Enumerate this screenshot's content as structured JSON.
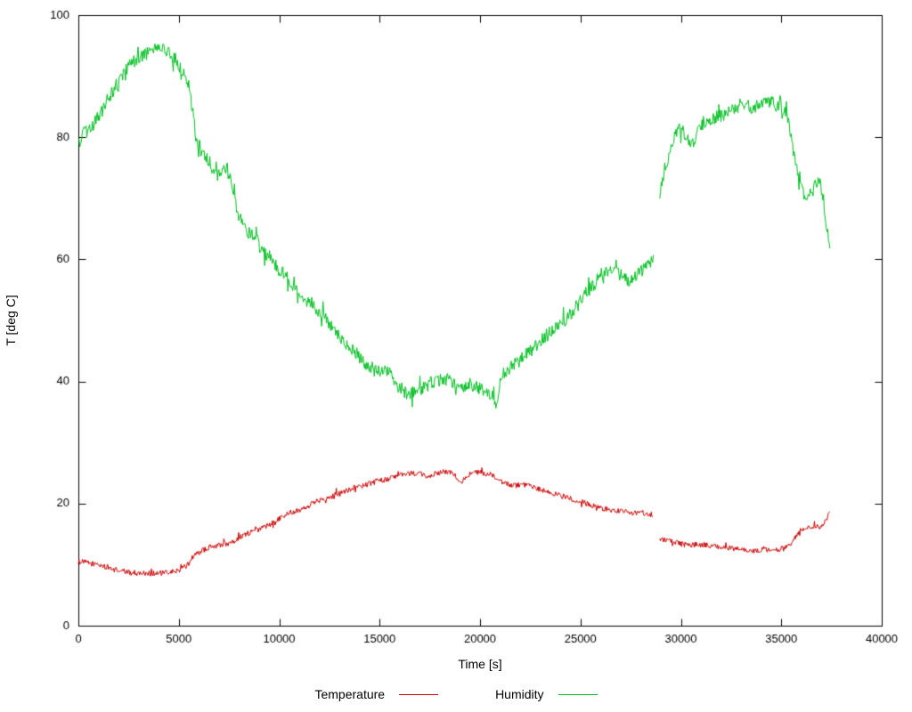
{
  "chart_data": {
    "type": "line",
    "title": "",
    "xlabel": "Time [s]",
    "ylabel": "T [deg C]",
    "xlim": [
      0,
      40000
    ],
    "ylim": [
      0,
      100
    ],
    "xticks": [
      0,
      5000,
      10000,
      15000,
      20000,
      25000,
      30000,
      35000,
      40000
    ],
    "yticks": [
      0,
      20,
      40,
      60,
      80,
      100
    ],
    "grid": false,
    "legend_position": "bottom-center",
    "axis_color": "#000000",
    "background_color": "#ffffff",
    "series": [
      {
        "name": "Temperature",
        "color": "#cc0000",
        "noise": 0.45,
        "segments": [
          [
            [
              0,
              10.5
            ],
            [
              300,
              10.4
            ],
            [
              600,
              10.2
            ],
            [
              1000,
              10.0
            ],
            [
              1400,
              9.6
            ],
            [
              1800,
              9.2
            ],
            [
              2200,
              8.9
            ],
            [
              2600,
              8.7
            ],
            [
              3000,
              8.6
            ],
            [
              3600,
              8.6
            ],
            [
              4200,
              8.6
            ],
            [
              4700,
              8.8
            ],
            [
              5100,
              9.2
            ],
            [
              5400,
              9.8
            ],
            [
              5700,
              11.3
            ],
            [
              6000,
              12.0
            ],
            [
              6300,
              12.5
            ],
            [
              6600,
              12.9
            ],
            [
              7000,
              13.2
            ],
            [
              7400,
              13.4
            ],
            [
              7800,
              14.0
            ],
            [
              8200,
              14.8
            ],
            [
              8600,
              15.3
            ],
            [
              9000,
              15.8
            ],
            [
              9400,
              16.3
            ],
            [
              9800,
              17.2
            ],
            [
              10200,
              18.0
            ],
            [
              10600,
              18.6
            ],
            [
              11000,
              19.0
            ],
            [
              11400,
              19.6
            ],
            [
              11800,
              20.3
            ],
            [
              12200,
              20.8
            ],
            [
              12600,
              21.2
            ],
            [
              13000,
              21.8
            ],
            [
              13400,
              22.2
            ],
            [
              13800,
              22.7
            ],
            [
              14200,
              23.0
            ],
            [
              14600,
              23.4
            ],
            [
              15000,
              23.8
            ],
            [
              15400,
              24.0
            ],
            [
              15800,
              24.4
            ],
            [
              16200,
              24.8
            ],
            [
              16600,
              25.0
            ],
            [
              17000,
              24.8
            ],
            [
              17400,
              24.5
            ],
            [
              17800,
              24.9
            ],
            [
              18200,
              25.1
            ],
            [
              18600,
              25.2
            ],
            [
              18900,
              24.0
            ],
            [
              19100,
              23.6
            ],
            [
              19300,
              24.6
            ],
            [
              19700,
              25.1
            ],
            [
              20100,
              25.0
            ],
            [
              20500,
              24.8
            ],
            [
              20900,
              23.8
            ],
            [
              21300,
              23.2
            ],
            [
              21700,
              23.0
            ],
            [
              22100,
              23.0
            ],
            [
              22500,
              22.8
            ],
            [
              22900,
              22.4
            ],
            [
              23300,
              22.0
            ],
            [
              23700,
              21.6
            ],
            [
              24100,
              21.2
            ],
            [
              24500,
              20.8
            ],
            [
              24900,
              20.4
            ],
            [
              25300,
              20.0
            ],
            [
              25700,
              19.6
            ],
            [
              26100,
              19.2
            ],
            [
              26500,
              18.9
            ],
            [
              26900,
              18.8
            ],
            [
              27300,
              18.6
            ],
            [
              27700,
              18.5
            ],
            [
              28100,
              18.5
            ],
            [
              28600,
              18.1
            ]
          ],
          [
            [
              28950,
              14.3
            ],
            [
              29300,
              14.0
            ],
            [
              29700,
              13.7
            ],
            [
              30100,
              13.3
            ],
            [
              30500,
              13.2
            ],
            [
              30900,
              13.3
            ],
            [
              31300,
              13.2
            ],
            [
              31700,
              13.0
            ],
            [
              32100,
              12.8
            ],
            [
              32500,
              12.6
            ],
            [
              32900,
              12.5
            ],
            [
              33300,
              12.4
            ],
            [
              33700,
              12.3
            ],
            [
              34100,
              12.5
            ],
            [
              34500,
              12.4
            ],
            [
              34900,
              12.5
            ],
            [
              35200,
              12.7
            ],
            [
              35500,
              13.6
            ],
            [
              35800,
              14.8
            ],
            [
              36100,
              15.7
            ],
            [
              36400,
              16.1
            ],
            [
              36700,
              16.2
            ],
            [
              37000,
              16.3
            ],
            [
              37200,
              17.0
            ],
            [
              37350,
              18.0
            ],
            [
              37450,
              19.2
            ]
          ]
        ]
      },
      {
        "name": "Humidity",
        "color": "#00c020",
        "noise": 1.1,
        "segments": [
          [
            [
              0,
              78.5
            ],
            [
              200,
              80.5
            ],
            [
              400,
              81.0
            ],
            [
              700,
              82.0
            ],
            [
              1000,
              83.5
            ],
            [
              1300,
              85.5
            ],
            [
              1600,
              87.0
            ],
            [
              1900,
              88.5
            ],
            [
              2200,
              90.0
            ],
            [
              2500,
              91.5
            ],
            [
              2800,
              92.5
            ],
            [
              3100,
              93.0
            ],
            [
              3400,
              93.8
            ],
            [
              3700,
              94.3
            ],
            [
              4000,
              94.5
            ],
            [
              4300,
              94.3
            ],
            [
              4600,
              93.5
            ],
            [
              4900,
              92.3
            ],
            [
              5200,
              90.5
            ],
            [
              5500,
              88.5
            ],
            [
              5700,
              84.0
            ],
            [
              5850,
              80.0
            ],
            [
              6000,
              78.8
            ],
            [
              6300,
              77.0
            ],
            [
              6600,
              75.5
            ],
            [
              6900,
              73.8
            ],
            [
              7200,
              74.5
            ],
            [
              7400,
              75.0
            ],
            [
              7600,
              72.5
            ],
            [
              7800,
              69.5
            ],
            [
              8000,
              66.5
            ],
            [
              8300,
              65.0
            ],
            [
              8600,
              64.0
            ],
            [
              8900,
              63.0
            ],
            [
              9200,
              61.5
            ],
            [
              9500,
              60.5
            ],
            [
              9800,
              59.0
            ],
            [
              10100,
              58.0
            ],
            [
              10400,
              57.2
            ],
            [
              10700,
              55.8
            ],
            [
              11000,
              54.5
            ],
            [
              11300,
              53.5
            ],
            [
              11600,
              52.8
            ],
            [
              11900,
              51.8
            ],
            [
              12200,
              50.8
            ],
            [
              12500,
              49.3
            ],
            [
              12800,
              48.0
            ],
            [
              13100,
              47.2
            ],
            [
              13400,
              46.0
            ],
            [
              13700,
              45.0
            ],
            [
              14000,
              44.0
            ],
            [
              14300,
              43.0
            ],
            [
              14600,
              42.3
            ],
            [
              14900,
              41.5
            ],
            [
              15200,
              42.0
            ],
            [
              15500,
              41.8
            ],
            [
              15800,
              39.5
            ],
            [
              16100,
              38.8
            ],
            [
              16400,
              38.0
            ],
            [
              16700,
              38.3
            ],
            [
              17000,
              38.5
            ],
            [
              17300,
              39.3
            ],
            [
              17600,
              39.8
            ],
            [
              17900,
              40.2
            ],
            [
              18200,
              40.5
            ],
            [
              18500,
              40.3
            ],
            [
              18800,
              39.2
            ],
            [
              19100,
              38.8
            ],
            [
              19400,
              39.8
            ],
            [
              19700,
              39.3
            ],
            [
              20000,
              38.8
            ],
            [
              20300,
              38.3
            ],
            [
              20600,
              37.5
            ],
            [
              20850,
              37.0
            ],
            [
              21000,
              40.0
            ],
            [
              21200,
              41.5
            ],
            [
              21500,
              42.2
            ],
            [
              21800,
              43.0
            ],
            [
              22100,
              43.8
            ],
            [
              22400,
              44.8
            ],
            [
              22700,
              45.5
            ],
            [
              23000,
              46.5
            ],
            [
              23300,
              47.5
            ],
            [
              23600,
              48.2
            ],
            [
              23900,
              49.2
            ],
            [
              24200,
              50.0
            ],
            [
              24500,
              51.0
            ],
            [
              24800,
              52.3
            ],
            [
              25100,
              53.5
            ],
            [
              25400,
              55.0
            ],
            [
              25700,
              56.0
            ],
            [
              26000,
              57.5
            ],
            [
              26300,
              58.0
            ],
            [
              26600,
              58.2
            ],
            [
              26900,
              57.5
            ],
            [
              27200,
              57.0
            ],
            [
              27500,
              56.5
            ],
            [
              27800,
              57.2
            ],
            [
              28100,
              58.2
            ],
            [
              28400,
              59.3
            ],
            [
              28650,
              60.2
            ]
          ],
          [
            [
              28950,
              71.0
            ],
            [
              29100,
              73.5
            ],
            [
              29300,
              76.0
            ],
            [
              29500,
              78.0
            ],
            [
              29700,
              80.0
            ],
            [
              29900,
              81.2
            ],
            [
              30100,
              81.0
            ],
            [
              30300,
              80.2
            ],
            [
              30500,
              78.8
            ],
            [
              30700,
              79.5
            ],
            [
              30900,
              81.5
            ],
            [
              31100,
              82.3
            ],
            [
              31400,
              83.0
            ],
            [
              31700,
              83.2
            ],
            [
              32000,
              83.5
            ],
            [
              32300,
              84.0
            ],
            [
              32600,
              84.3
            ],
            [
              32900,
              85.3
            ],
            [
              33200,
              85.5
            ],
            [
              33500,
              84.8
            ],
            [
              33800,
              85.0
            ],
            [
              34100,
              85.8
            ],
            [
              34400,
              86.0
            ],
            [
              34700,
              85.3
            ],
            [
              35000,
              84.2
            ],
            [
              35300,
              83.8
            ],
            [
              35500,
              79.5
            ],
            [
              35700,
              76.5
            ],
            [
              35900,
              73.5
            ],
            [
              36100,
              71.0
            ],
            [
              36300,
              69.5
            ],
            [
              36500,
              71.0
            ],
            [
              36700,
              72.0
            ],
            [
              36900,
              72.5
            ],
            [
              37050,
              71.0
            ],
            [
              37200,
              67.0
            ],
            [
              37350,
              64.0
            ],
            [
              37450,
              62.3
            ]
          ]
        ]
      }
    ]
  }
}
